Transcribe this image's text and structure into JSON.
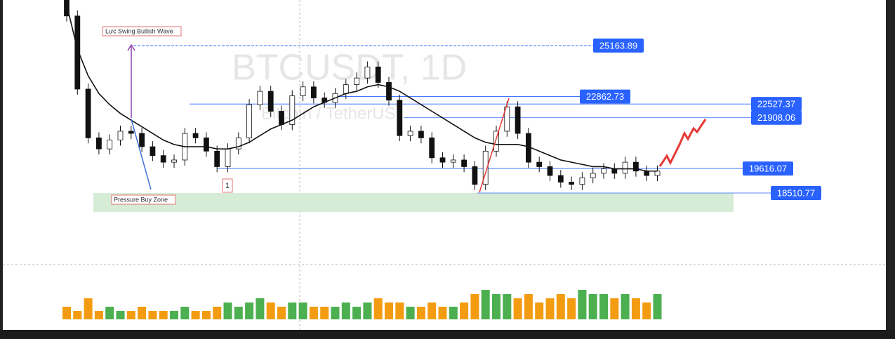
{
  "chart_data": {
    "type": "candlestick",
    "title": "BTCUSDT, 1D",
    "subtitle": "Bitcoin / TetherUS",
    "annotations": {
      "wave": "Lực Swing Bullish Wave",
      "zone": "Pressure Buy Zone",
      "marker": "1"
    },
    "price_levels": [
      25163.89,
      22862.73,
      22527.37,
      21908.06,
      19616.07,
      18510.77
    ],
    "open": [
      27800,
      26500,
      23200,
      21000,
      20500,
      20900,
      21300,
      21200,
      20600,
      20200,
      19900,
      20000,
      21200,
      21000,
      20400,
      19700,
      20500,
      21000,
      22500,
      23100,
      22200,
      21600,
      22900,
      23300,
      22800,
      22600,
      23000,
      23400,
      23700,
      24200,
      23500,
      22700,
      21100,
      21300,
      21000,
      20100,
      19900,
      20000,
      19700,
      18900,
      20400,
      21300,
      22400,
      21200,
      19900,
      19700,
      19300,
      19000,
      18900,
      19200,
      19400,
      19600,
      19400,
      19900,
      19500,
      19300
    ],
    "high": [
      28050,
      26750,
      23450,
      21250,
      21150,
      21550,
      21550,
      21450,
      20850,
      20450,
      20250,
      21450,
      21450,
      21250,
      20650,
      20750,
      21250,
      22750,
      23350,
      23350,
      22450,
      23150,
      23550,
      23550,
      23050,
      23250,
      23650,
      23950,
      24450,
      24450,
      23750,
      22950,
      21550,
      21550,
      21250,
      20350,
      20250,
      20250,
      19950,
      20650,
      21550,
      22650,
      22650,
      21450,
      20150,
      19950,
      19550,
      19250,
      19450,
      19650,
      19850,
      19850,
      20150,
      20150,
      19750,
      19750
    ],
    "low": [
      26250,
      22950,
      20750,
      20250,
      20250,
      20650,
      20950,
      20350,
      19950,
      19650,
      19650,
      19750,
      20750,
      20150,
      19450,
      19450,
      20250,
      20750,
      22250,
      21950,
      21350,
      21350,
      22650,
      22550,
      22350,
      22350,
      22750,
      23150,
      23450,
      23250,
      22450,
      20850,
      20850,
      20750,
      19850,
      19650,
      19650,
      19450,
      18650,
      18650,
      20150,
      21050,
      20950,
      19650,
      19450,
      19050,
      18750,
      18650,
      18650,
      18950,
      19150,
      19150,
      19150,
      19250,
      19050,
      19050
    ],
    "close": [
      26500,
      23200,
      21000,
      20500,
      20900,
      21300,
      21200,
      20600,
      20200,
      19900,
      20000,
      21200,
      21000,
      20400,
      19700,
      20500,
      21000,
      22500,
      23100,
      22200,
      21600,
      22900,
      23300,
      22800,
      22600,
      23000,
      23400,
      23700,
      24200,
      23500,
      22700,
      21100,
      21300,
      21000,
      20100,
      19900,
      20000,
      19700,
      18900,
      20400,
      21300,
      22400,
      21200,
      19900,
      19700,
      19300,
      19000,
      18900,
      19200,
      19400,
      19600,
      19400,
      19900,
      19500,
      19300,
      19500
    ],
    "moving_average": [
      27000,
      25000,
      23800,
      23000,
      22500,
      22100,
      21800,
      21500,
      21200,
      20900,
      20700,
      20600,
      20600,
      20600,
      20500,
      20500,
      20600,
      20800,
      21100,
      21400,
      21600,
      21800,
      22100,
      22400,
      22600,
      22800,
      23000,
      23100,
      23300,
      23400,
      23300,
      23100,
      22800,
      22500,
      22200,
      21900,
      21600,
      21300,
      21000,
      20800,
      20700,
      20700,
      20700,
      20600,
      20400,
      20200,
      20000,
      19900,
      19800,
      19700,
      19700,
      19600,
      19600,
      19600,
      19500,
      19500
    ],
    "volume": [
      3,
      2,
      5,
      2,
      3,
      2,
      2,
      3,
      2,
      2,
      2,
      3,
      2,
      2,
      3,
      4,
      3,
      4,
      5,
      4,
      3,
      4,
      4,
      3,
      3,
      3,
      4,
      3,
      4,
      5,
      4,
      4,
      3,
      3,
      4,
      3,
      3,
      4,
      6,
      7,
      6,
      6,
      5,
      6,
      4,
      5,
      6,
      5,
      7,
      6,
      6,
      5,
      6,
      5,
      4,
      6
    ],
    "up_color": "#26a69a",
    "down_color": "#111111",
    "volume_up_color": "#4caf50",
    "volume_down_color": "#f39c12",
    "level_color": "#2962ff"
  }
}
